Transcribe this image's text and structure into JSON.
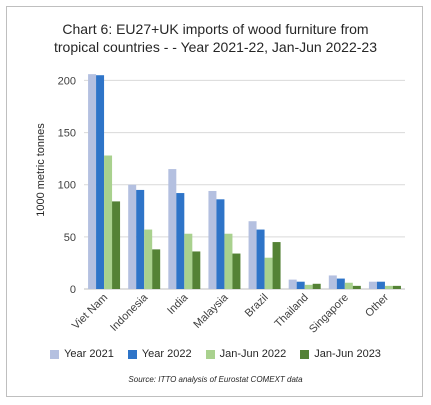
{
  "chart_data": {
    "type": "bar",
    "title_line1": "Chart 6: EU27+UK imports of wood furniture from",
    "title_line2": "tropical countries - - Year 2021-22, Jan-Jun 2022-23",
    "ylabel": "1000 metric tonnes",
    "xlabel": "",
    "ylim": [
      0,
      210
    ],
    "yticks": [
      0,
      50,
      100,
      150,
      200
    ],
    "grid": true,
    "legend_position": "bottom",
    "categories": [
      "Viet Nam",
      "Indonesia",
      "India",
      "Malaysia",
      "Brazil",
      "Thailand",
      "Singapore",
      "Other"
    ],
    "series": [
      {
        "name": "Year 2021",
        "color": "#b4c0e0",
        "values": [
          206,
          100,
          115,
          94,
          65,
          9,
          13,
          7
        ]
      },
      {
        "name": "Year 2022",
        "color": "#2e74c8",
        "values": [
          205,
          95,
          92,
          86,
          57,
          7,
          10,
          7
        ]
      },
      {
        "name": "Jan-Jun 2022",
        "color": "#a9d18e",
        "values": [
          128,
          57,
          53,
          53,
          30,
          4,
          6,
          3
        ]
      },
      {
        "name": "Jan-Jun 2023",
        "color": "#548235",
        "values": [
          84,
          38,
          36,
          34,
          45,
          5,
          3,
          3
        ]
      }
    ],
    "source": "Source: ITTO analysis of Eurostat COMEXT data"
  }
}
